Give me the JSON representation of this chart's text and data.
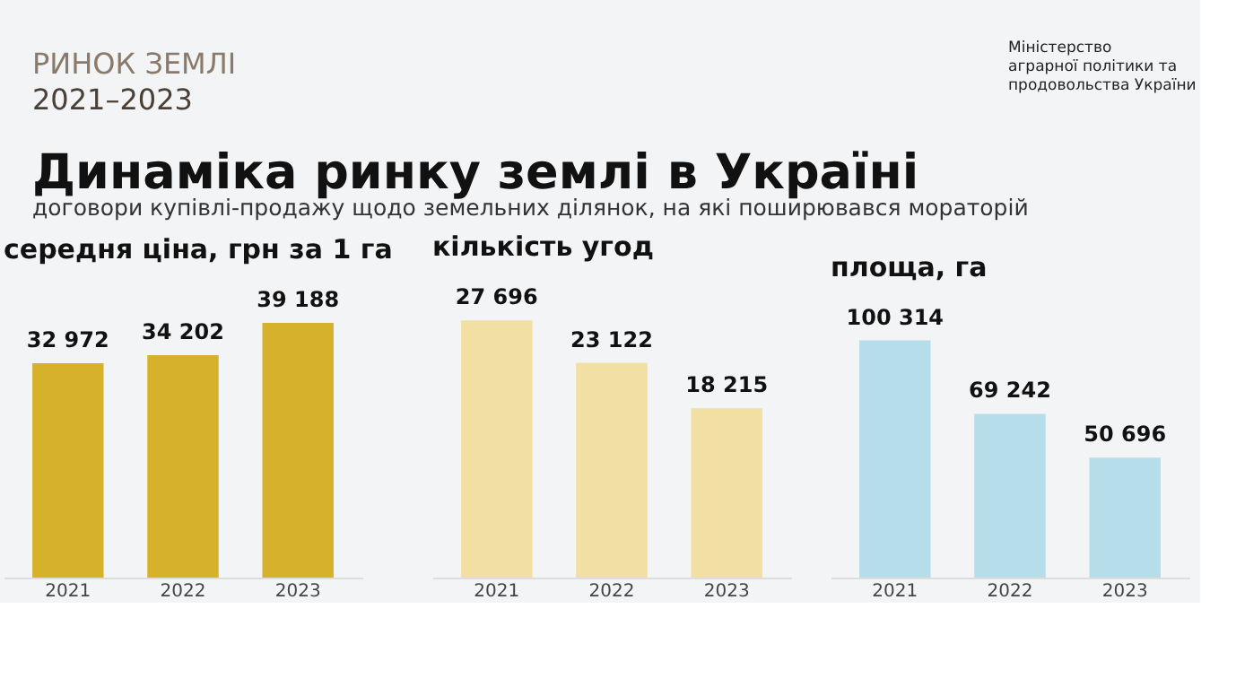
{
  "chart_data": [
    {
      "type": "bar",
      "title": "середня ціна, грн за 1 га",
      "categories": [
        "2021",
        "2022",
        "2023"
      ],
      "values": [
        32972,
        34202,
        39188
      ],
      "color": "#d6b12c",
      "tick_labels": "x",
      "data_labels": true,
      "annotations": [
        "РИНОК ЗЕМЛІ",
        "2021–2023",
        "Динаміка ринку землі в Україні",
        "договори купівлі-продажу щодо земельних ділянок, на які поширювався мораторій",
        "Міністерство\nаграрної політики та\nпродовольства України"
      ]
    },
    {
      "type": "bar",
      "title": "кількість угод",
      "categories": [
        "2021",
        "2022",
        "2023"
      ],
      "values": [
        27696,
        23122,
        18215
      ],
      "color": "#f2dfa3",
      "tick_labels": "x",
      "data_labels": true
    },
    {
      "type": "bar",
      "title": "площа, га",
      "categories": [
        "2021",
        "2022",
        "2023"
      ],
      "values": [
        100314,
        69242,
        50696
      ],
      "color": "#b5deea",
      "tick_labels": "x",
      "data_labels": true
    }
  ]
}
